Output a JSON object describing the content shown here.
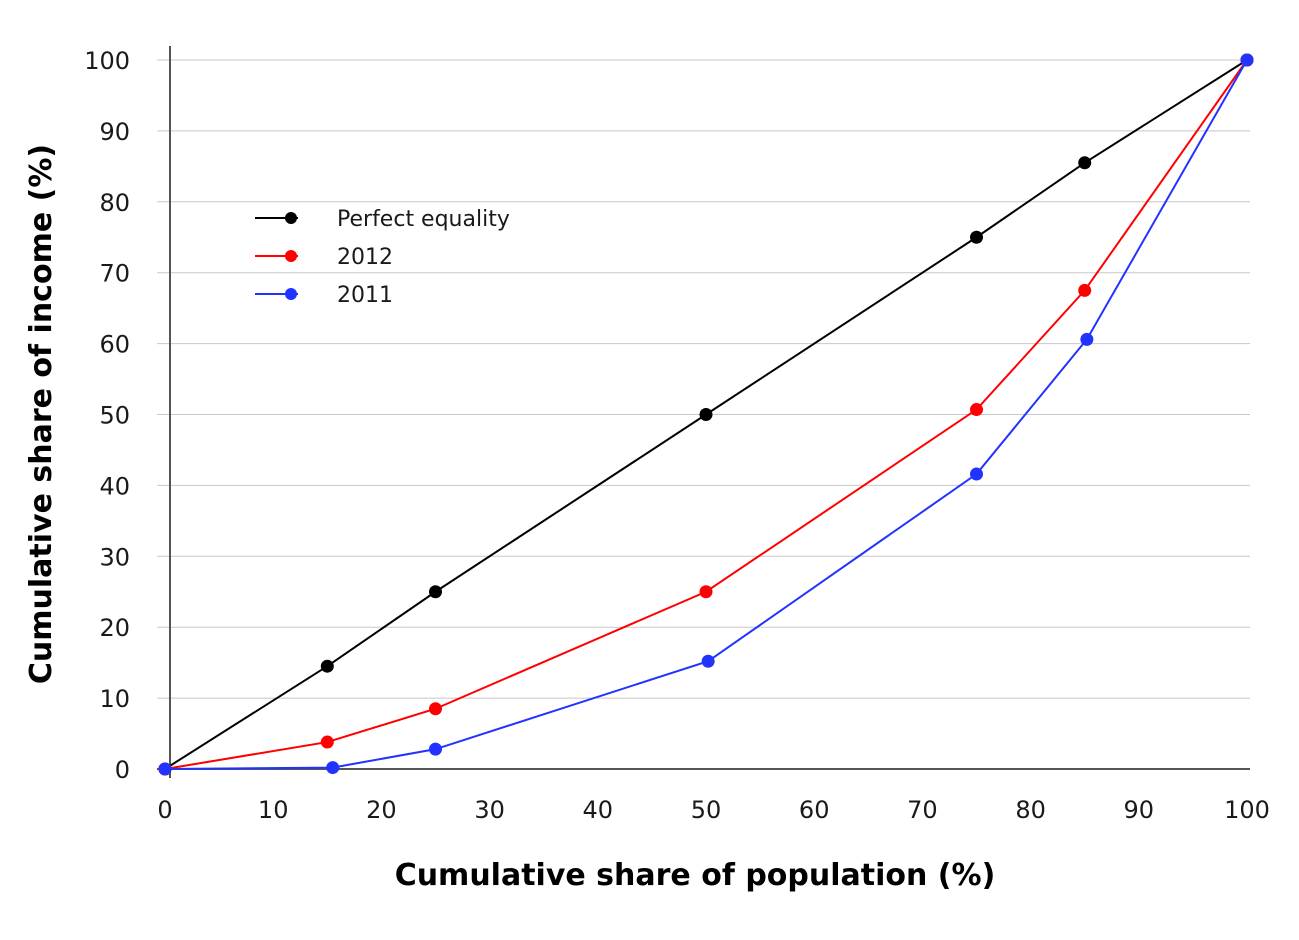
{
  "chart_data": {
    "type": "line",
    "title": "",
    "xlabel": "Cumulative share of population (%)",
    "ylabel": "Cumulative share of income (%)",
    "xlim": [
      0,
      100
    ],
    "ylim": [
      0,
      100
    ],
    "x_ticks": [
      0,
      10,
      20,
      30,
      40,
      50,
      60,
      70,
      80,
      90,
      100
    ],
    "y_ticks": [
      0,
      10,
      20,
      30,
      40,
      50,
      60,
      70,
      80,
      90,
      100
    ],
    "grid": "horizontal",
    "legend_position": "upper-left",
    "series": [
      {
        "name": "Perfect equality",
        "color": "#000000",
        "points": [
          [
            0,
            0
          ],
          [
            15,
            14.5
          ],
          [
            25,
            25
          ],
          [
            50,
            50
          ],
          [
            75,
            75
          ],
          [
            85,
            85.5
          ],
          [
            100,
            100
          ]
        ]
      },
      {
        "name": "2012",
        "color": "#ff0000",
        "points": [
          [
            0,
            0
          ],
          [
            15,
            3.8
          ],
          [
            25,
            8.5
          ],
          [
            50,
            25
          ],
          [
            75,
            50.7
          ],
          [
            85,
            67.5
          ],
          [
            100,
            100
          ]
        ]
      },
      {
        "name": "2011",
        "color": "#2233ff",
        "points": [
          [
            0,
            0
          ],
          [
            15.5,
            0.2
          ],
          [
            25,
            2.8
          ],
          [
            50.2,
            15.2
          ],
          [
            75,
            41.6
          ],
          [
            85.2,
            60.6
          ],
          [
            100,
            100
          ]
        ]
      }
    ]
  }
}
